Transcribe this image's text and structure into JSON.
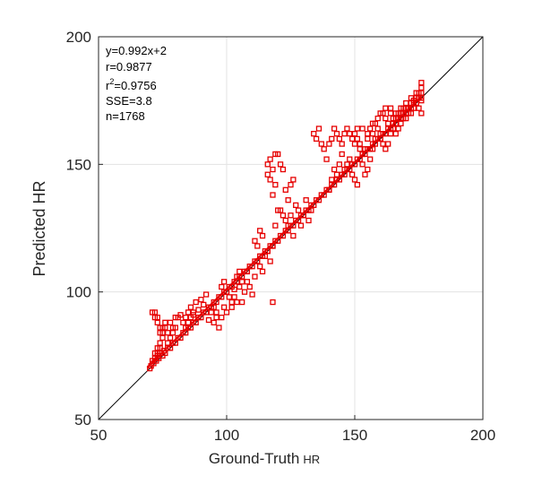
{
  "chart_data": {
    "type": "scatter",
    "xlabel": {
      "main": "Ground-Truth",
      "unit": "HR"
    },
    "ylabel": "Predicted HR",
    "xlim": [
      50,
      200
    ],
    "ylim": [
      50,
      200
    ],
    "xticks": [
      "50",
      "100",
      "150",
      "200"
    ],
    "yticks": [
      "50",
      "100",
      "150",
      "200"
    ],
    "grid": true,
    "marker": "square",
    "marker_color": "#e60000",
    "identity_line_color": "#000000",
    "fit_line": {
      "slope": 0.992,
      "intercept": 2,
      "color": "#e60000"
    },
    "annotations": {
      "equation": "y=0.992x+2",
      "r": "r=0.9877",
      "r2_prefix": "r",
      "r2_exp": "2",
      "r2_value": "=0.9756",
      "sse": "SSE=3.8",
      "n": "n=1768"
    },
    "points": [
      [
        70,
        70
      ],
      [
        70.5,
        71
      ],
      [
        71,
        73
      ],
      [
        71.5,
        72
      ],
      [
        72,
        74
      ],
      [
        72.5,
        73
      ],
      [
        73,
        75
      ],
      [
        73.5,
        74
      ],
      [
        74,
        76
      ],
      [
        75,
        75
      ],
      [
        75.5,
        77
      ],
      [
        76,
        76
      ],
      [
        77,
        78
      ],
      [
        78,
        78
      ],
      [
        79,
        80
      ],
      [
        80,
        80
      ],
      [
        81,
        82
      ],
      [
        82,
        82
      ],
      [
        83,
        84
      ],
      [
        84,
        84
      ],
      [
        85,
        86
      ],
      [
        86,
        86
      ],
      [
        87,
        88
      ],
      [
        88,
        88
      ],
      [
        89,
        90
      ],
      [
        90,
        90
      ],
      [
        91,
        92
      ],
      [
        92,
        92
      ],
      [
        93,
        94
      ],
      [
        94,
        94
      ],
      [
        95,
        96
      ],
      [
        96,
        96
      ],
      [
        97,
        98
      ],
      [
        98,
        98
      ],
      [
        99,
        100
      ],
      [
        100,
        100
      ],
      [
        101,
        102
      ],
      [
        102,
        102
      ],
      [
        103,
        104
      ],
      [
        104,
        104
      ],
      [
        105,
        106
      ],
      [
        106,
        106
      ],
      [
        107,
        108
      ],
      [
        108,
        108
      ],
      [
        109,
        110
      ],
      [
        110,
        110
      ],
      [
        111,
        112
      ],
      [
        112,
        112
      ],
      [
        113,
        114
      ],
      [
        114,
        114
      ],
      [
        115,
        116
      ],
      [
        116,
        116
      ],
      [
        117,
        118
      ],
      [
        118,
        118
      ],
      [
        119,
        120
      ],
      [
        120,
        120
      ],
      [
        121,
        122
      ],
      [
        122,
        122
      ],
      [
        123,
        124
      ],
      [
        124,
        124
      ],
      [
        125,
        126
      ],
      [
        126,
        126
      ],
      [
        127,
        128
      ],
      [
        128,
        128
      ],
      [
        129,
        130
      ],
      [
        130,
        130
      ],
      [
        131,
        132
      ],
      [
        132,
        132
      ],
      [
        133,
        134
      ],
      [
        134,
        134
      ],
      [
        135,
        136
      ],
      [
        136,
        136
      ],
      [
        137,
        138
      ],
      [
        138,
        138
      ],
      [
        139,
        140
      ],
      [
        140,
        140
      ],
      [
        141,
        142
      ],
      [
        142,
        142
      ],
      [
        143,
        144
      ],
      [
        144,
        144
      ],
      [
        145,
        146
      ],
      [
        146,
        146
      ],
      [
        147,
        148
      ],
      [
        148,
        148
      ],
      [
        149,
        150
      ],
      [
        150,
        150
      ],
      [
        151,
        152
      ],
      [
        152,
        152
      ],
      [
        153,
        154
      ],
      [
        154,
        154
      ],
      [
        155,
        156
      ],
      [
        156,
        156
      ],
      [
        157,
        158
      ],
      [
        158,
        158
      ],
      [
        159,
        160
      ],
      [
        160,
        160
      ],
      [
        161,
        162
      ],
      [
        162,
        162
      ],
      [
        163,
        164
      ],
      [
        164,
        164
      ],
      [
        165,
        166
      ],
      [
        166,
        166
      ],
      [
        167,
        168
      ],
      [
        168,
        168
      ],
      [
        169,
        170
      ],
      [
        170,
        170
      ],
      [
        171,
        172
      ],
      [
        172,
        172
      ],
      [
        173,
        174
      ],
      [
        174,
        174
      ],
      [
        175,
        176
      ],
      [
        176,
        175
      ],
      [
        176,
        178
      ],
      [
        71,
        92
      ],
      [
        72,
        90
      ],
      [
        73,
        88
      ],
      [
        74,
        84
      ],
      [
        74,
        80
      ],
      [
        75,
        82
      ],
      [
        76,
        86
      ],
      [
        78,
        88
      ],
      [
        80,
        90
      ],
      [
        82,
        91
      ],
      [
        83,
        88
      ],
      [
        84,
        86
      ],
      [
        85,
        92
      ],
      [
        86,
        94
      ],
      [
        87,
        91
      ],
      [
        88,
        96
      ],
      [
        89,
        93
      ],
      [
        90,
        97
      ],
      [
        91,
        95
      ],
      [
        92,
        99
      ],
      [
        93,
        89
      ],
      [
        94,
        92
      ],
      [
        95,
        88
      ],
      [
        96,
        90
      ],
      [
        97,
        86
      ],
      [
        98,
        102
      ],
      [
        99,
        104
      ],
      [
        100,
        100
      ],
      [
        101,
        98
      ],
      [
        102,
        96
      ],
      [
        103,
        101
      ],
      [
        104,
        106
      ],
      [
        105,
        108
      ],
      [
        106,
        104
      ],
      [
        107,
        100
      ],
      [
        108,
        104
      ],
      [
        109,
        102
      ],
      [
        110,
        99
      ],
      [
        111,
        106
      ],
      [
        112,
        112
      ],
      [
        113,
        110
      ],
      [
        114,
        108
      ],
      [
        115,
        114
      ],
      [
        116,
        116
      ],
      [
        117,
        112
      ],
      [
        118,
        118
      ],
      [
        118,
        96
      ],
      [
        119,
        126
      ],
      [
        120,
        132
      ],
      [
        121,
        132
      ],
      [
        122,
        130
      ],
      [
        123,
        128
      ],
      [
        124,
        126
      ],
      [
        125,
        130
      ],
      [
        126,
        122
      ],
      [
        127,
        134
      ],
      [
        128,
        132
      ],
      [
        129,
        126
      ],
      [
        130,
        130
      ],
      [
        131,
        136
      ],
      [
        132,
        128
      ],
      [
        133,
        132
      ],
      [
        134,
        162
      ],
      [
        135,
        160
      ],
      [
        136,
        164
      ],
      [
        137,
        158
      ],
      [
        138,
        156
      ],
      [
        139,
        152
      ],
      [
        140,
        140
      ],
      [
        141,
        144
      ],
      [
        142,
        148
      ],
      [
        143,
        146
      ],
      [
        144,
        150
      ],
      [
        145,
        154
      ],
      [
        146,
        148
      ],
      [
        147,
        150
      ],
      [
        148,
        152
      ],
      [
        149,
        146
      ],
      [
        150,
        144
      ],
      [
        151,
        142
      ],
      [
        152,
        158
      ],
      [
        153,
        154
      ],
      [
        154,
        156
      ],
      [
        155,
        160
      ],
      [
        156,
        164
      ],
      [
        157,
        162
      ],
      [
        158,
        166
      ],
      [
        159,
        168
      ],
      [
        160,
        162
      ],
      [
        161,
        170
      ],
      [
        162,
        168
      ],
      [
        163,
        166
      ],
      [
        164,
        172
      ],
      [
        165,
        168
      ],
      [
        166,
        170
      ],
      [
        167,
        170
      ],
      [
        168,
        172
      ],
      [
        169,
        172
      ],
      [
        170,
        174
      ],
      [
        171,
        172
      ],
      [
        172,
        176
      ],
      [
        173,
        175
      ],
      [
        174,
        176
      ],
      [
        175,
        178
      ],
      [
        176,
        180
      ],
      [
        176,
        182
      ],
      [
        176,
        170
      ],
      [
        175,
        172
      ],
      [
        116,
        150
      ],
      [
        117,
        152
      ],
      [
        118,
        148
      ],
      [
        119,
        154
      ],
      [
        120,
        154
      ],
      [
        121,
        150
      ],
      [
        122,
        148
      ],
      [
        123,
        140
      ],
      [
        124,
        136
      ],
      [
        125,
        142
      ],
      [
        126,
        144
      ],
      [
        116,
        146
      ],
      [
        117,
        144
      ],
      [
        118,
        138
      ],
      [
        119,
        142
      ],
      [
        111,
        120
      ],
      [
        112,
        118
      ],
      [
        113,
        124
      ],
      [
        114,
        122
      ],
      [
        108,
        108
      ],
      [
        106,
        96
      ],
      [
        105,
        102
      ],
      [
        104,
        96
      ],
      [
        103,
        98
      ],
      [
        102,
        94
      ],
      [
        100,
        92
      ],
      [
        99,
        94
      ],
      [
        98,
        90
      ],
      [
        96,
        92
      ],
      [
        95,
        94
      ],
      [
        87,
        92
      ],
      [
        86,
        90
      ],
      [
        85,
        88
      ],
      [
        84,
        90
      ],
      [
        81,
        90
      ],
      [
        80,
        86
      ],
      [
        79,
        84
      ],
      [
        78,
        82
      ],
      [
        77,
        84
      ],
      [
        76,
        88
      ],
      [
        75,
        86
      ],
      [
        74,
        86
      ],
      [
        73,
        90
      ],
      [
        72,
        92
      ],
      [
        75,
        84
      ],
      [
        77,
        80
      ],
      [
        79,
        86
      ],
      [
        73,
        78
      ],
      [
        72,
        76
      ],
      [
        73,
        76
      ],
      [
        74,
        78
      ],
      [
        140,
        158
      ],
      [
        141,
        160
      ],
      [
        142,
        164
      ],
      [
        143,
        162
      ],
      [
        144,
        160
      ],
      [
        145,
        158
      ],
      [
        146,
        162
      ],
      [
        147,
        164
      ],
      [
        148,
        162
      ],
      [
        149,
        160
      ],
      [
        150,
        158
      ],
      [
        151,
        160
      ],
      [
        152,
        156
      ],
      [
        153,
        150
      ],
      [
        154,
        146
      ],
      [
        155,
        148
      ],
      [
        156,
        152
      ],
      [
        157,
        156
      ],
      [
        158,
        160
      ],
      [
        159,
        164
      ],
      [
        160,
        160
      ],
      [
        161,
        158
      ],
      [
        162,
        156
      ],
      [
        163,
        158
      ],
      [
        164,
        162
      ],
      [
        165,
        164
      ],
      [
        166,
        162
      ],
      [
        167,
        164
      ],
      [
        168,
        166
      ],
      [
        169,
        168
      ],
      [
        170,
        168
      ],
      [
        171,
        170
      ],
      [
        172,
        170
      ],
      [
        173,
        172
      ],
      [
        174,
        174
      ],
      [
        175,
        176
      ],
      [
        176,
        176
      ],
      [
        155,
        162
      ],
      [
        157,
        166
      ],
      [
        160,
        170
      ],
      [
        162,
        172
      ],
      [
        164,
        170
      ],
      [
        166,
        168
      ],
      [
        168,
        170
      ],
      [
        170,
        172
      ],
      [
        172,
        174
      ],
      [
        174,
        178
      ],
      [
        153,
        164
      ],
      [
        151,
        164
      ],
      [
        150,
        162
      ]
    ]
  }
}
